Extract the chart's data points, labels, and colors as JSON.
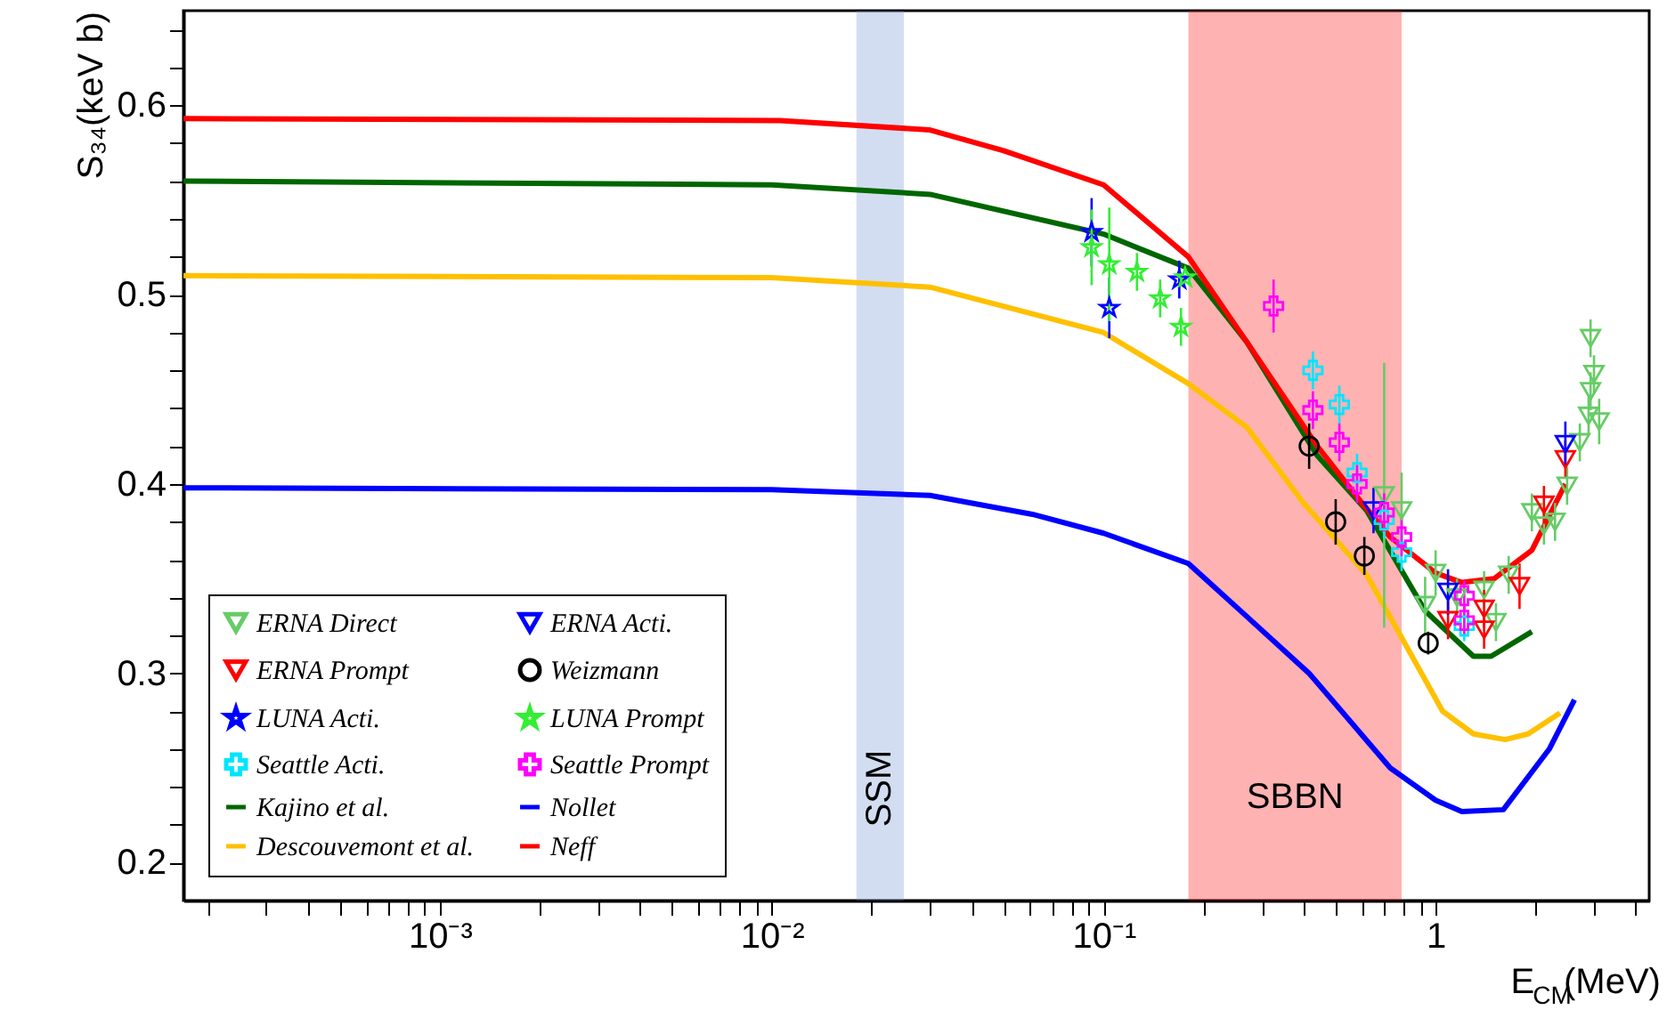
{
  "chart_data": {
    "type": "scatter",
    "xlabel": "E$_{CM}$(MeV)",
    "ylabel": "S₃₄(keV b)",
    "log": "x",
    "xlim": [
      0.000169,
      4.4
    ],
    "ylim": [
      0.18,
      0.65
    ],
    "xticks": [
      {
        "value": 0.0002,
        "label": null
      },
      {
        "value": 0.0003,
        "label": null
      },
      {
        "value": 0.0004,
        "label": null
      },
      {
        "value": 0.0005,
        "label": null
      },
      {
        "value": 0.0006,
        "label": null
      },
      {
        "value": 0.0007,
        "label": null
      },
      {
        "value": 0.0008,
        "label": null
      },
      {
        "value": 0.0009,
        "label": null
      },
      {
        "value": 0.001,
        "label": "10⁻³"
      },
      {
        "value": 0.002,
        "label": null
      },
      {
        "value": 0.003,
        "label": null
      },
      {
        "value": 0.004,
        "label": null
      },
      {
        "value": 0.005,
        "label": null
      },
      {
        "value": 0.006,
        "label": null
      },
      {
        "value": 0.007,
        "label": null
      },
      {
        "value": 0.008,
        "label": null
      },
      {
        "value": 0.009,
        "label": null
      },
      {
        "value": 0.01,
        "label": "10⁻²"
      },
      {
        "value": 0.02,
        "label": null
      },
      {
        "value": 0.03,
        "label": null
      },
      {
        "value": 0.04,
        "label": null
      },
      {
        "value": 0.05,
        "label": null
      },
      {
        "value": 0.06,
        "label": null
      },
      {
        "value": 0.07,
        "label": null
      },
      {
        "value": 0.08,
        "label": null
      },
      {
        "value": 0.09,
        "label": null
      },
      {
        "value": 0.1,
        "label": "10⁻¹"
      },
      {
        "value": 0.2,
        "label": null
      },
      {
        "value": 0.3,
        "label": null
      },
      {
        "value": 0.4,
        "label": null
      },
      {
        "value": 0.5,
        "label": null
      },
      {
        "value": 0.6,
        "label": null
      },
      {
        "value": 0.7,
        "label": null
      },
      {
        "value": 0.8,
        "label": null
      },
      {
        "value": 0.9,
        "label": null
      },
      1,
      {
        "value": 2,
        "label": null
      },
      {
        "value": 3,
        "label": null
      },
      {
        "value": 4,
        "label": null
      }
    ],
    "yticks": [
      {
        "value": 0.2,
        "label": "0.2"
      },
      {
        "value": 0.22,
        "label": null
      },
      {
        "value": 0.24,
        "label": null
      },
      {
        "value": 0.26,
        "label": null
      },
      {
        "value": 0.28,
        "label": null
      },
      {
        "value": 0.3,
        "label": "0.3"
      },
      {
        "value": 0.32,
        "label": null
      },
      {
        "value": 0.34,
        "label": null
      },
      {
        "value": 0.36,
        "label": null
      },
      {
        "value": 0.38,
        "label": null
      },
      {
        "value": 0.4,
        "label": "0.4"
      },
      {
        "value": 0.42,
        "label": null
      },
      {
        "value": 0.44,
        "label": null
      },
      {
        "value": 0.46,
        "label": null
      },
      {
        "value": 0.48,
        "label": null
      },
      {
        "value": 0.5,
        "label": "0.5"
      },
      {
        "value": 0.52,
        "label": null
      },
      {
        "value": 0.54,
        "label": null
      },
      {
        "value": 0.56,
        "label": null
      },
      {
        "value": 0.58,
        "label": null
      },
      {
        "value": 0.6,
        "label": "0.6"
      },
      {
        "value": 0.62,
        "label": null
      },
      {
        "value": 0.64,
        "label": null
      }
    ],
    "grid": false,
    "legend": "bottom left",
    "bands": [
      {
        "axis": "x",
        "from": 0.018,
        "to": 0.025,
        "label": "SSM",
        "color": "#6a8fd0"
      },
      {
        "axis": "x",
        "from": 0.18,
        "to": 0.79,
        "label": "SBBN",
        "color": "#ff0000"
      }
    ],
    "series": [
      {
        "name": "ERNA Direct",
        "type": "scatter",
        "marker": "triangle",
        "color": "#66cc66",
        "x": [
          0.7,
          0.79,
          0.93,
          1.0,
          1.16,
          1.4,
          1.52,
          1.66,
          1.95,
          2.12,
          2.29,
          2.49,
          2.72,
          2.89,
          2.93,
          3.0,
          2.93,
          3.11
        ],
        "values": [
          0.394,
          0.386,
          0.336,
          0.353,
          0.34,
          0.344,
          0.327,
          0.352,
          0.385,
          0.378,
          0.38,
          0.399,
          0.422,
          0.436,
          0.449,
          0.458,
          0.477,
          0.433
        ],
        "errors": [
          0.07,
          0.02,
          0.015,
          0.012,
          0.01,
          0.01,
          0.01,
          0.01,
          0.01,
          0.01,
          0.01,
          0.01,
          0.01,
          0.01,
          0.01,
          0.01,
          0.01,
          0.012
        ]
      },
      {
        "name": "ERNA Prompt",
        "type": "scatter",
        "marker": "triangle",
        "color": "#ff0000",
        "x": [
          1.09,
          1.4,
          1.4,
          1.79,
          2.12,
          2.46
        ],
        "values": [
          0.328,
          0.334,
          0.323,
          0.346,
          0.389,
          0.413
        ],
        "errors": [
          0.01,
          0.01,
          0.01,
          0.012,
          0.01,
          0.01
        ]
      },
      {
        "name": "LUNA Acti.",
        "type": "scatter",
        "marker": "star",
        "color": "#0000ff",
        "x": [
          0.092,
          0.104,
          0.169
        ],
        "values": [
          0.533,
          0.493,
          0.508
        ],
        "errors": [
          0.018,
          0.016,
          0.01
        ]
      },
      {
        "name": "Seattle Acti.",
        "type": "scatter",
        "marker": "cross",
        "color": "#00e5ff",
        "x": [
          0.427,
          0.513,
          0.58,
          0.7,
          0.79,
          1.22
        ],
        "values": [
          0.46,
          0.442,
          0.406,
          0.381,
          0.364,
          0.325
        ],
        "errors": [
          0.01,
          0.01,
          0.01,
          0.01,
          0.01,
          0.008
        ]
      },
      {
        "name": "Kajino et al.",
        "type": "line",
        "marker": "none",
        "color": "#006600",
        "x": [
          0.000169,
          0.01,
          0.03,
          0.1,
          0.18,
          0.27,
          0.44,
          0.62,
          0.93,
          1.3,
          1.47,
          1.95
        ],
        "values": [
          0.56,
          0.558,
          0.553,
          0.532,
          0.514,
          0.475,
          0.415,
          0.386,
          0.333,
          0.309,
          0.309,
          0.322
        ]
      },
      {
        "name": "Descouvemont et al.",
        "type": "line",
        "marker": "none",
        "color": "#ffc000",
        "x": [
          0.000169,
          0.01,
          0.03,
          0.1,
          0.18,
          0.27,
          0.4,
          0.62,
          1.05,
          1.3,
          1.62,
          1.9,
          2.37
        ],
        "values": [
          0.51,
          0.509,
          0.504,
          0.48,
          0.453,
          0.43,
          0.39,
          0.352,
          0.28,
          0.268,
          0.265,
          0.268,
          0.279
        ]
      },
      {
        "name": "ERNA Acti.",
        "type": "scatter",
        "marker": "triangle",
        "color": "#0000ff",
        "x": [
          0.65,
          1.09,
          2.46
        ],
        "values": [
          0.386,
          0.343,
          0.421
        ],
        "errors": [
          0.012,
          0.012,
          0.012
        ]
      },
      {
        "name": "Weizmann",
        "type": "scatter",
        "marker": "circle",
        "color": "#000000",
        "x": [
          0.416,
          0.5,
          0.61,
          0.95
        ],
        "values": [
          0.42,
          0.38,
          0.362,
          0.316
        ],
        "errors": [
          0.012,
          0.012,
          0.01,
          0.006
        ]
      },
      {
        "name": "LUNA Prompt",
        "type": "scatter",
        "marker": "star",
        "color": "#33ee33",
        "x": [
          0.092,
          0.104,
          0.126,
          0.148,
          0.171,
          0.176
        ],
        "values": [
          0.525,
          0.516,
          0.512,
          0.498,
          0.483,
          0.509
        ],
        "errors": [
          0.02,
          0.03,
          0.01,
          0.01,
          0.01,
          null
        ]
      },
      {
        "name": "Seattle Prompt",
        "type": "scatter",
        "marker": "cross",
        "color": "#ff00ff",
        "x": [
          0.325,
          0.427,
          0.513,
          0.58,
          0.7,
          0.79,
          1.22,
          1.22
        ],
        "values": [
          0.494,
          0.439,
          0.422,
          0.4,
          0.385,
          0.372,
          0.341,
          0.328
        ],
        "errors": [
          0.014,
          0.01,
          0.01,
          0.01,
          0.01,
          0.01,
          0.008,
          0.008
        ]
      },
      {
        "name": "Nollet",
        "type": "line",
        "marker": "none",
        "color": "#0000ff",
        "x": [
          0.000169,
          0.01,
          0.03,
          0.061,
          0.1,
          0.18,
          0.27,
          0.416,
          0.73,
          1.0,
          1.2,
          1.6,
          2.2,
          2.62
        ],
        "values": [
          0.398,
          0.397,
          0.394,
          0.384,
          0.374,
          0.358,
          0.33,
          0.3,
          0.25,
          0.233,
          0.227,
          0.228,
          0.26,
          0.286
        ]
      },
      {
        "name": "Neff",
        "type": "line",
        "marker": "none",
        "color": "#ff0000",
        "x": [
          0.000169,
          0.0106,
          0.03,
          0.05,
          0.1,
          0.18,
          0.27,
          0.44,
          0.6,
          0.73,
          1.0,
          1.2,
          1.5,
          1.95,
          2.46
        ],
        "values": [
          0.593,
          0.592,
          0.587,
          0.576,
          0.558,
          0.52,
          0.475,
          0.42,
          0.39,
          0.372,
          0.353,
          0.348,
          0.35,
          0.365,
          0.4
        ]
      }
    ]
  }
}
